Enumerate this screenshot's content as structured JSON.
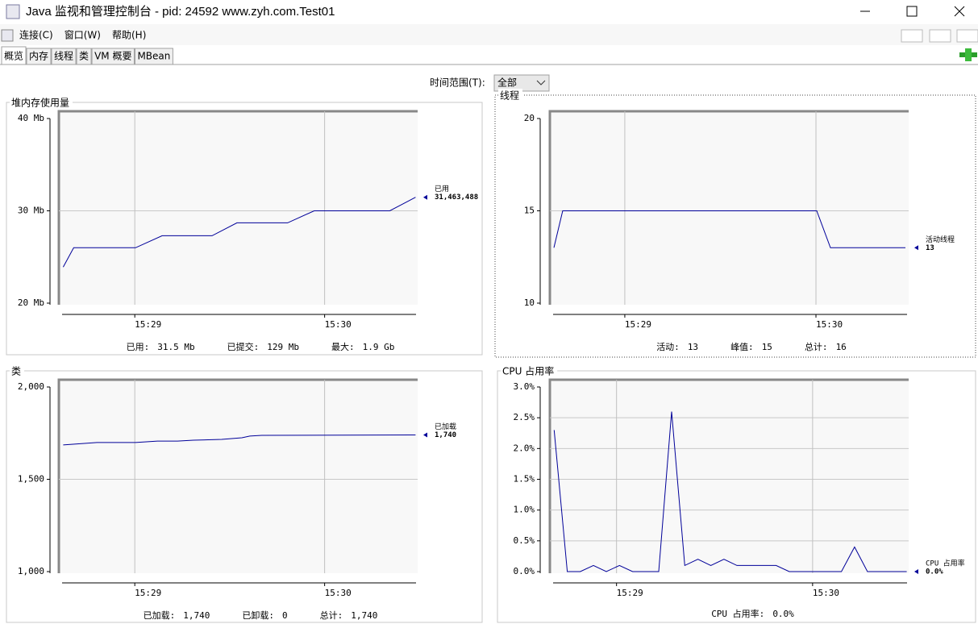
{
  "window": {
    "title": "Java 监视和管理控制台 - pid: 24592 www.zyh.com.Test01",
    "menu": [
      "连接(C)",
      "窗口(W)",
      "帮助(H)"
    ],
    "tabs": [
      "概览",
      "内存",
      "线程",
      "类",
      "VM 概要",
      "MBean"
    ],
    "time_range_label": "时间范围(T):",
    "time_range_value": "全部"
  },
  "chart_data": [
    {
      "type": "line",
      "title": "堆内存使用量",
      "x": [
        928.623,
        928.678,
        929.004,
        929.144,
        929.407,
        929.538,
        929.805,
        929.945,
        930.343,
        930.479
      ],
      "xlim": [
        928.6,
        930.49
      ],
      "xticks": [
        {
          "value": 929,
          "label": "15:29"
        },
        {
          "value": 930,
          "label": "15:30"
        }
      ],
      "ylim": [
        20,
        40
      ],
      "yticks": [
        {
          "value": 20,
          "label": "20 Mb"
        },
        {
          "value": 30,
          "label": "30 Mb"
        },
        {
          "value": 40,
          "label": "40 Mb"
        }
      ],
      "grid": true,
      "series": [
        {
          "name": "已用",
          "color": "#000099",
          "values": [
            23.9,
            26.0,
            26.0,
            27.3,
            27.3,
            28.7,
            28.7,
            30.0,
            30.0,
            31.463488
          ],
          "value_labels": [
            null,
            null,
            null,
            null,
            null,
            null,
            null,
            null,
            null,
            "31,463,488"
          ]
        }
      ],
      "summary": [
        {
          "label": "已用:",
          "value": "31.5  Mb"
        },
        {
          "label": "已提交:",
          "value": "129  Mb"
        },
        {
          "label": "最大:",
          "value": "1.9  Gb"
        }
      ]
    },
    {
      "type": "line",
      "title": "线程",
      "x": [
        928.629,
        928.675,
        930.004,
        930.076,
        930.468
      ],
      "xlim": [
        928.608,
        930.485
      ],
      "xticks": [
        {
          "value": 929,
          "label": "15:29"
        },
        {
          "value": 930,
          "label": "15:30"
        }
      ],
      "ylim": [
        10,
        20
      ],
      "yticks": [
        10,
        15,
        20
      ],
      "grid": true,
      "series": [
        {
          "name": "活动线程",
          "color": "#000099",
          "values": [
            13,
            15,
            15,
            13,
            13
          ]
        }
      ],
      "summary": [
        {
          "label": "活动:",
          "value": 13
        },
        {
          "label": "峰值:",
          "value": 15
        },
        {
          "label": "总计:",
          "value": 16
        }
      ]
    },
    {
      "type": "line",
      "title": "类",
      "x": [
        928.623,
        928.801,
        929.004,
        929.119,
        929.225,
        929.309,
        929.458,
        929.564,
        929.606,
        929.669,
        930.479
      ],
      "xlim": [
        928.6,
        930.49
      ],
      "xticks": [
        {
          "value": 929,
          "label": "15:29"
        },
        {
          "value": 930,
          "label": "15:30"
        }
      ],
      "ylim": [
        1000,
        2000
      ],
      "yticks": [
        {
          "value": 1000,
          "label": "1,000"
        },
        {
          "value": 1500,
          "label": "1,500"
        },
        {
          "value": 2000,
          "label": "2,000"
        }
      ],
      "grid": true,
      "series": [
        {
          "name": "已加载",
          "color": "#000099",
          "values": [
            1686,
            1699,
            1699,
            1707,
            1707,
            1712,
            1716,
            1725,
            1734,
            1738,
            1740
          ],
          "value_labels": [
            null,
            null,
            null,
            null,
            null,
            null,
            null,
            null,
            null,
            null,
            "1,740"
          ]
        }
      ],
      "summary": [
        {
          "label": "已加载:",
          "value": "1,740"
        },
        {
          "label": "已卸载:",
          "value": 0
        },
        {
          "label": "总计:",
          "value": "1,740"
        }
      ]
    },
    {
      "type": "line",
      "title": "CPU 占用率",
      "x": [
        928.682,
        928.749,
        928.815,
        928.882,
        928.948,
        929.015,
        929.082,
        929.148,
        929.215,
        929.281,
        929.348,
        929.415,
        929.481,
        929.548,
        929.614,
        929.681,
        929.748,
        929.814,
        929.881,
        929.947,
        930.014,
        930.081,
        930.147,
        930.214,
        930.28,
        930.347,
        930.414,
        930.48
      ],
      "xlim": [
        928.66,
        930.49
      ],
      "xticks": [
        {
          "value": 929,
          "label": "15:29"
        },
        {
          "value": 930,
          "label": "15:30"
        }
      ],
      "ylim": [
        0,
        3.0
      ],
      "yticks": [
        {
          "value": 0,
          "label": "0.0%"
        },
        {
          "value": 0.5,
          "label": "0.5%"
        },
        {
          "value": 1.0,
          "label": "1.0%"
        },
        {
          "value": 1.5,
          "label": "1.5%"
        },
        {
          "value": 2.0,
          "label": "2.0%"
        },
        {
          "value": 2.5,
          "label": "2.5%"
        },
        {
          "value": 3.0,
          "label": "3.0%"
        }
      ],
      "grid": true,
      "series": [
        {
          "name": "CPU 占用率",
          "color": "#000099",
          "values": [
            2.3,
            0,
            0,
            0.1,
            0,
            0.1,
            0,
            0,
            0,
            2.6,
            0.1,
            0.2,
            0.1,
            0.2,
            0.1,
            0.1,
            0.1,
            0.1,
            0,
            0,
            0,
            0,
            0,
            0.4,
            0,
            0,
            0,
            0
          ],
          "value_labels": [
            null,
            null,
            null,
            null,
            null,
            null,
            null,
            null,
            null,
            null,
            null,
            null,
            null,
            null,
            null,
            null,
            null,
            null,
            null,
            null,
            null,
            null,
            null,
            null,
            null,
            null,
            null,
            "0.0%"
          ]
        }
      ],
      "summary": [
        {
          "label": "CPU 占用率:",
          "value": "0.0%"
        }
      ]
    }
  ]
}
